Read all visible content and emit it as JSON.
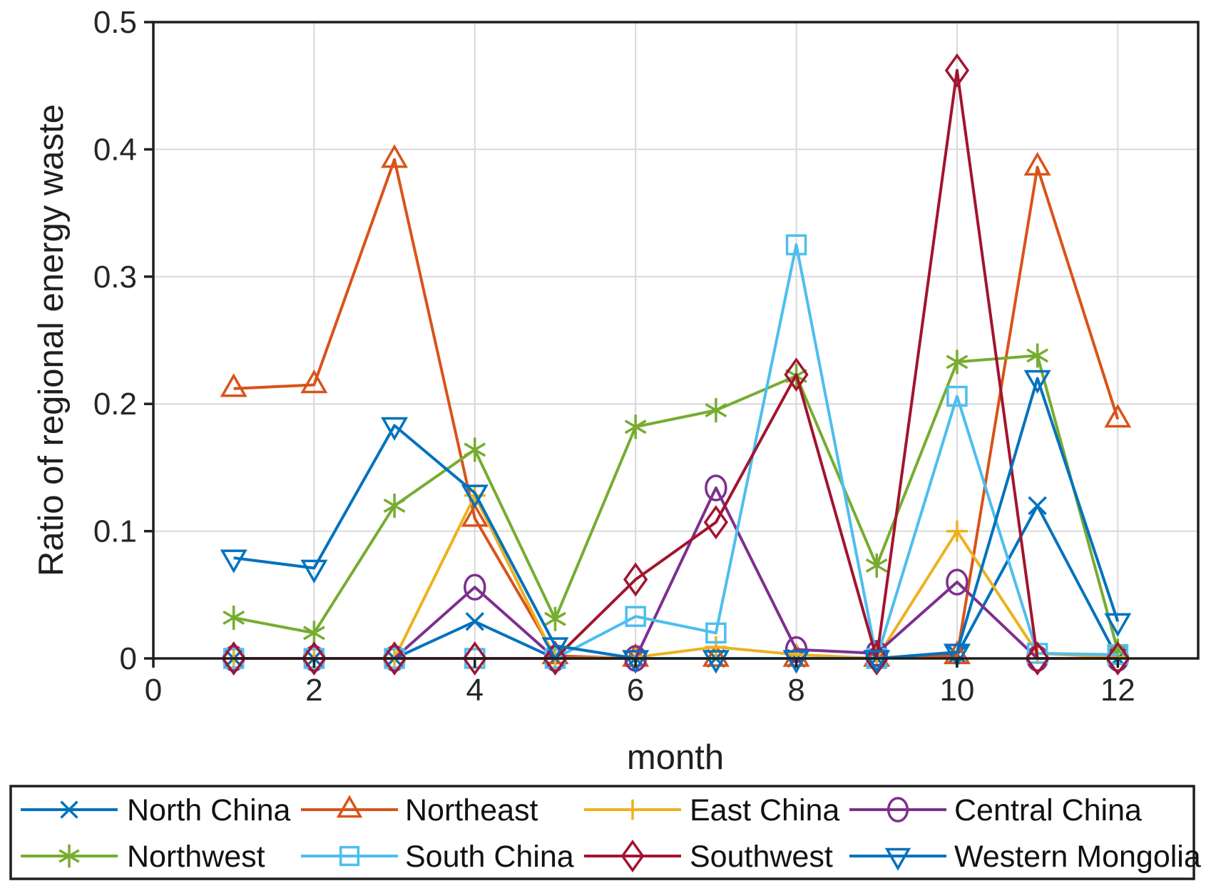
{
  "figure": {
    "background": "#ffffff",
    "axis_color": "#1f1f1f",
    "grid_color": "#d9d9d9",
    "tick_label_color": "#262626"
  },
  "chart_data": {
    "type": "line",
    "title": "",
    "xlabel": "month",
    "ylabel": "Ratio of regional energy waste",
    "xlim": [
      0,
      13
    ],
    "ylim": [
      0,
      0.5
    ],
    "xticks": [
      0,
      2,
      4,
      6,
      8,
      10,
      12
    ],
    "xtick_labels": [
      "0",
      "2",
      "4",
      "6",
      "8",
      "10",
      "12"
    ],
    "yticks": [
      0,
      0.1,
      0.2,
      0.3,
      0.4,
      0.5
    ],
    "ytick_labels": [
      "0",
      "0.1",
      "0.2",
      "0.3",
      "0.4",
      "0.5"
    ],
    "grid": true,
    "legend_position": "bottom",
    "legend_columns": 4,
    "x": [
      1,
      2,
      3,
      4,
      5,
      6,
      7,
      8,
      9,
      10,
      11,
      12
    ],
    "series": [
      {
        "name": "North China",
        "color": "#0072BD",
        "marker": "x",
        "values": [
          0,
          0,
          0,
          0.029,
          0,
          0,
          0,
          0,
          0,
          0.003,
          0.12,
          0
        ]
      },
      {
        "name": "Northeast",
        "color": "#D95319",
        "marker": "triangle-up",
        "values": [
          0.212,
          0.215,
          0.392,
          0.11,
          0.002,
          0,
          0,
          0,
          0,
          0.002,
          0.386,
          0.188
        ]
      },
      {
        "name": "East China",
        "color": "#EDB120",
        "marker": "plus",
        "values": [
          0,
          0,
          0,
          0.128,
          0,
          0.001,
          0.009,
          0.003,
          0,
          0.1,
          0.004,
          0.001
        ]
      },
      {
        "name": "Central China",
        "color": "#7E2F8E",
        "marker": "circle",
        "values": [
          0,
          0,
          0,
          0.056,
          0,
          0,
          0.134,
          0.007,
          0.004,
          0.06,
          0,
          0
        ]
      },
      {
        "name": "Northwest",
        "color": "#77AC30",
        "marker": "asterisk",
        "values": [
          0.032,
          0.02,
          0.12,
          0.164,
          0.031,
          0.182,
          0.195,
          0.222,
          0.073,
          0.233,
          0.238,
          0.006
        ]
      },
      {
        "name": "South China",
        "color": "#4DBEEE",
        "marker": "square",
        "values": [
          0,
          0,
          0,
          0,
          0,
          0.033,
          0.02,
          0.325,
          0,
          0.206,
          0.004,
          0.003
        ]
      },
      {
        "name": "Southwest",
        "color": "#A2142F",
        "marker": "diamond",
        "values": [
          0,
          0,
          0,
          0,
          0,
          0.062,
          0.107,
          0.223,
          0,
          0.462,
          0,
          0
        ]
      },
      {
        "name": "Western Mongolia",
        "color": "#0072BD",
        "marker": "triangle-down",
        "values": [
          0.079,
          0.071,
          0.183,
          0.13,
          0.01,
          0,
          0,
          0,
          0,
          0.005,
          0.22,
          0.029
        ]
      }
    ]
  }
}
